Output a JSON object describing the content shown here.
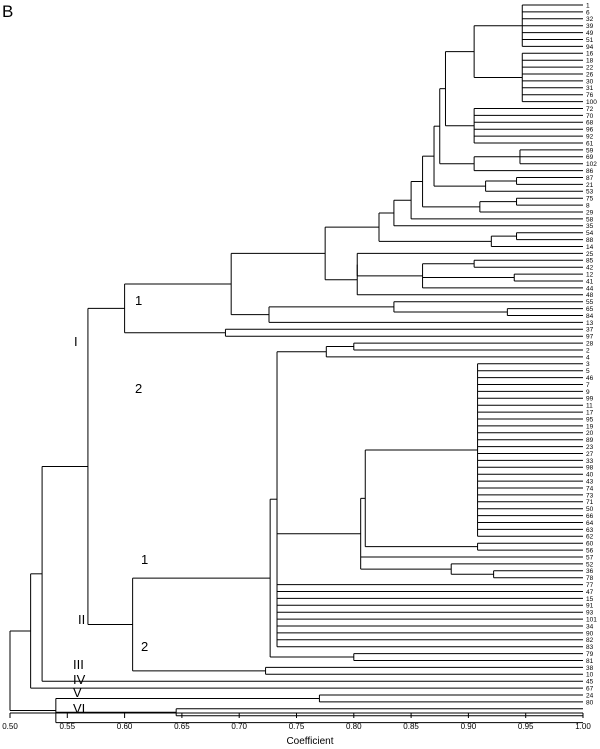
{
  "figure": {
    "panel_label": "B",
    "axis_title": "Coefficient",
    "axis_ticks": [
      "0.50",
      "0.55",
      "0.60",
      "0.65",
      "0.70",
      "0.75",
      "0.80",
      "0.85",
      "0.90",
      "0.95",
      "1.00"
    ]
  },
  "leaves": [
    "1",
    "6",
    "32",
    "39",
    "49",
    "51",
    "94",
    "16",
    "18",
    "22",
    "26",
    "30",
    "31",
    "76",
    "100",
    "72",
    "70",
    "68",
    "96",
    "92",
    "61",
    "59",
    "69",
    "102",
    "86",
    "87",
    "21",
    "53",
    "75",
    "8",
    "29",
    "58",
    "35",
    "54",
    "88",
    "14",
    "25",
    "85",
    "42",
    "12",
    "41",
    "44",
    "48",
    "55",
    "65",
    "84",
    "13",
    "37",
    "97",
    "28",
    "2",
    "4",
    "3",
    "5",
    "46",
    "7",
    "9",
    "99",
    "11",
    "17",
    "95",
    "19",
    "20",
    "89",
    "23",
    "27",
    "33",
    "98",
    "40",
    "43",
    "74",
    "73",
    "71",
    "50",
    "66",
    "64",
    "63",
    "62",
    "60",
    "56",
    "57",
    "52",
    "36",
    "78",
    "77",
    "47",
    "15",
    "91",
    "93",
    "101",
    "34",
    "90",
    "82",
    "83",
    "79",
    "81",
    "38",
    "10",
    "45",
    "67",
    "24",
    "80"
  ],
  "cluster_labels": {
    "I": "I",
    "I_1": "1",
    "I_2": "2",
    "II": "II",
    "II_1": "1",
    "II_2": "2",
    "III": "III",
    "IV": "IV",
    "V": "V",
    "VI": "VI"
  },
  "tree_levels": {
    "root": 0.5,
    "I_II_III_IV": 0.518,
    "V_VI": 0.54,
    "I_II_III": 0.528,
    "I_II": 0.568,
    "I_1_2": 0.6,
    "I_1": 0.693,
    "I_2": 0.688,
    "II_1_2": 0.607,
    "II_1": 0.727,
    "II_2": 0.723,
    "V": 0.77,
    "VI": 0.645
  }
}
